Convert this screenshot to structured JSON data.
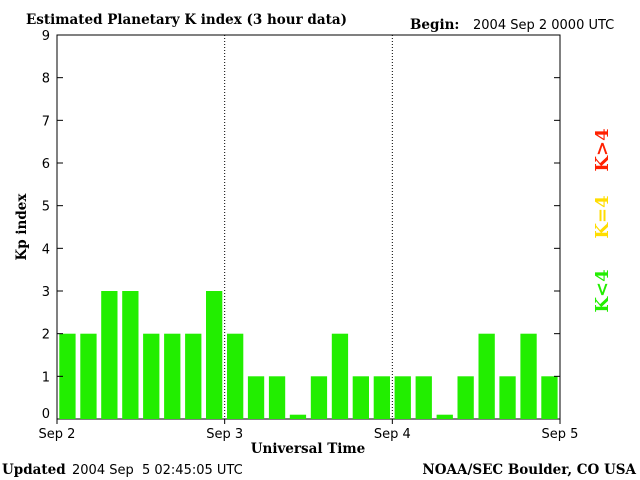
{
  "chart_data": {
    "type": "bar",
    "title": "Estimated Planetary K index (3 hour data)",
    "begin_label": "Begin:",
    "begin_value": "2004 Sep 2 0000 UTC",
    "ylabel": "Kp index",
    "xlabel": "Universal Time",
    "ylim": [
      0,
      9
    ],
    "yticks": [
      "0",
      "1",
      "2",
      "3",
      "4",
      "5",
      "6",
      "7",
      "8",
      "9"
    ],
    "xtick_labels": [
      "Sep 2",
      "Sep 3",
      "Sep 4",
      "Sep 5"
    ],
    "day_separators": true,
    "values": [
      2,
      2,
      3,
      3,
      2,
      2,
      2,
      3,
      2,
      1,
      1,
      0.1,
      1,
      2,
      1,
      1,
      1,
      1,
      0.1,
      1,
      2,
      1,
      2,
      1
    ],
    "bar_color": "#22ee00",
    "legend": [
      {
        "label": "K>4",
        "color": "#ff2000"
      },
      {
        "label": "K=4",
        "color": "#ffdd00"
      },
      {
        "label": "K<4",
        "color": "#22ee00"
      }
    ]
  },
  "footer": {
    "updated_label": "Updated",
    "updated_value": "2004 Sep  5 02:45:05 UTC",
    "source": "NOAA/SEC Boulder, CO USA"
  }
}
